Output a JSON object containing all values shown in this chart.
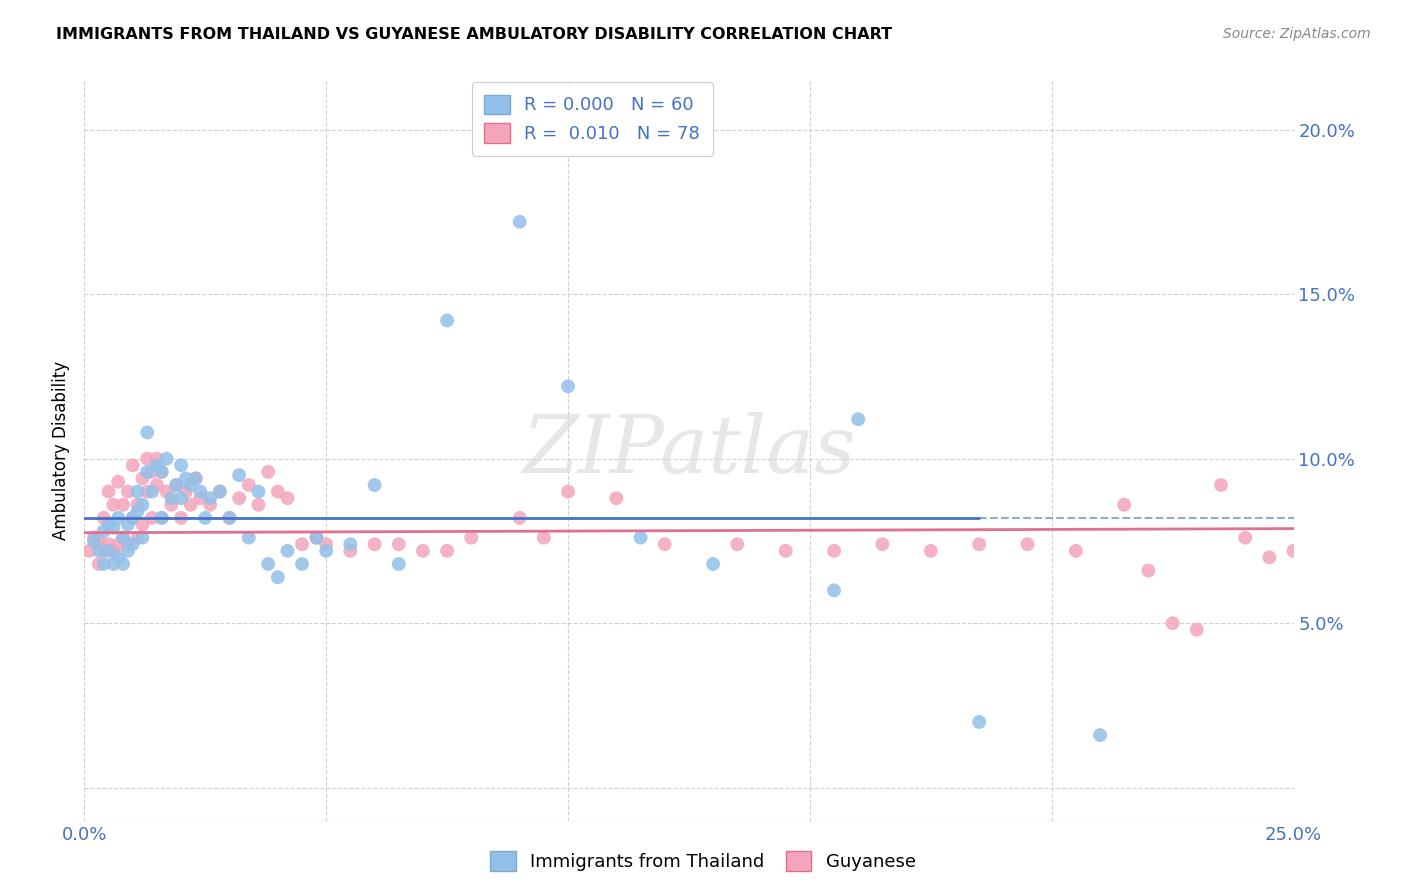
{
  "title": "IMMIGRANTS FROM THAILAND VS GUYANESE AMBULATORY DISABILITY CORRELATION CHART",
  "source": "Source: ZipAtlas.com",
  "ylabel": "Ambulatory Disability",
  "xlim": [
    0.0,
    0.25
  ],
  "ylim": [
    -0.01,
    0.215
  ],
  "legend1_r": "0.000",
  "legend1_n": "60",
  "legend2_r": "0.010",
  "legend2_n": "78",
  "blue_color": "#92C0E8",
  "pink_color": "#F4A5BB",
  "blue_line_color": "#4472C4",
  "pink_line_color": "#E07090",
  "watermark": "ZIPatlas",
  "thailand_x": [
    0.002,
    0.003,
    0.004,
    0.004,
    0.005,
    0.005,
    0.006,
    0.006,
    0.007,
    0.007,
    0.008,
    0.008,
    0.009,
    0.009,
    0.01,
    0.01,
    0.011,
    0.011,
    0.012,
    0.012,
    0.013,
    0.013,
    0.014,
    0.015,
    0.016,
    0.016,
    0.017,
    0.018,
    0.019,
    0.02,
    0.02,
    0.021,
    0.022,
    0.023,
    0.024,
    0.025,
    0.026,
    0.028,
    0.03,
    0.032,
    0.034,
    0.036,
    0.038,
    0.04,
    0.042,
    0.045,
    0.048,
    0.05,
    0.055,
    0.06,
    0.065,
    0.075,
    0.09,
    0.1,
    0.115,
    0.13,
    0.155,
    0.16,
    0.185,
    0.21
  ],
  "thailand_y": [
    0.075,
    0.072,
    0.078,
    0.068,
    0.08,
    0.072,
    0.079,
    0.068,
    0.082,
    0.07,
    0.076,
    0.068,
    0.08,
    0.072,
    0.082,
    0.074,
    0.084,
    0.09,
    0.086,
    0.076,
    0.096,
    0.108,
    0.09,
    0.098,
    0.096,
    0.082,
    0.1,
    0.088,
    0.092,
    0.098,
    0.088,
    0.094,
    0.092,
    0.094,
    0.09,
    0.082,
    0.088,
    0.09,
    0.082,
    0.095,
    0.076,
    0.09,
    0.068,
    0.064,
    0.072,
    0.068,
    0.076,
    0.072,
    0.074,
    0.092,
    0.068,
    0.142,
    0.172,
    0.122,
    0.076,
    0.068,
    0.06,
    0.112,
    0.02,
    0.016
  ],
  "guyanese_x": [
    0.001,
    0.002,
    0.003,
    0.003,
    0.004,
    0.004,
    0.005,
    0.005,
    0.006,
    0.006,
    0.007,
    0.007,
    0.008,
    0.008,
    0.009,
    0.009,
    0.01,
    0.01,
    0.011,
    0.011,
    0.012,
    0.012,
    0.013,
    0.013,
    0.014,
    0.014,
    0.015,
    0.015,
    0.016,
    0.016,
    0.017,
    0.018,
    0.019,
    0.02,
    0.021,
    0.022,
    0.023,
    0.024,
    0.026,
    0.028,
    0.03,
    0.032,
    0.034,
    0.036,
    0.038,
    0.04,
    0.042,
    0.045,
    0.048,
    0.05,
    0.055,
    0.06,
    0.065,
    0.07,
    0.075,
    0.08,
    0.09,
    0.095,
    0.1,
    0.11,
    0.12,
    0.135,
    0.145,
    0.155,
    0.165,
    0.175,
    0.185,
    0.195,
    0.205,
    0.215,
    0.22,
    0.225,
    0.23,
    0.235,
    0.24,
    0.245,
    0.25,
    0.255
  ],
  "guyanese_y": [
    0.072,
    0.076,
    0.075,
    0.068,
    0.082,
    0.072,
    0.09,
    0.074,
    0.086,
    0.072,
    0.093,
    0.074,
    0.086,
    0.076,
    0.09,
    0.074,
    0.098,
    0.082,
    0.086,
    0.076,
    0.094,
    0.08,
    0.09,
    0.1,
    0.096,
    0.082,
    0.092,
    0.1,
    0.096,
    0.082,
    0.09,
    0.086,
    0.092,
    0.082,
    0.09,
    0.086,
    0.094,
    0.088,
    0.086,
    0.09,
    0.082,
    0.088,
    0.092,
    0.086,
    0.096,
    0.09,
    0.088,
    0.074,
    0.076,
    0.074,
    0.072,
    0.074,
    0.074,
    0.072,
    0.072,
    0.076,
    0.082,
    0.076,
    0.09,
    0.088,
    0.074,
    0.074,
    0.072,
    0.072,
    0.074,
    0.072,
    0.074,
    0.074,
    0.072,
    0.086,
    0.066,
    0.05,
    0.048,
    0.092,
    0.076,
    0.07,
    0.072,
    0.074
  ]
}
